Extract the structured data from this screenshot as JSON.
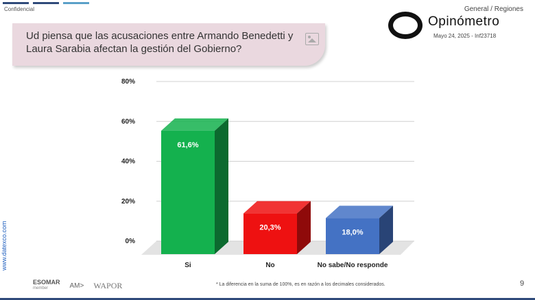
{
  "header": {
    "confidential": "Confidencial",
    "region": "General / Regiones",
    "brand": "Opinómetro",
    "date": "Mayo 24, 2025 - Inf23718"
  },
  "question": "Ud piensa que las acusaciones entre Armando Benedetti y Laura Sarabia afectan la gestión del Gobierno?",
  "footer": {
    "website": "www.datexco.com",
    "footnote": "* La diferencia en la suma de 100%, es en razón a los decimales considerados.",
    "page": "9",
    "logo_esomar": "ESOMAR",
    "logo_esomar_sub": "member",
    "logo_amai": "AM>",
    "logo_wapor": "WAPOR"
  },
  "colors": {
    "accent": "#2f4a7a",
    "question_bg": "#ead8df"
  },
  "chart_data": {
    "type": "bar",
    "categories": [
      "Si",
      "No",
      "No sabe/No responde"
    ],
    "values": [
      61.6,
      20.3,
      18.0
    ],
    "data_labels": [
      "61,6%",
      "20,3%",
      "18,0%"
    ],
    "colors": [
      "#14b14e",
      "#ee1111",
      "#4472c4"
    ],
    "yticks": [
      "0%",
      "20%",
      "40%",
      "60%",
      "80%"
    ],
    "ytick_values": [
      0,
      20,
      40,
      60,
      80
    ],
    "ylim": [
      0,
      80
    ],
    "grid": true,
    "legend": "none",
    "style": "3d"
  }
}
